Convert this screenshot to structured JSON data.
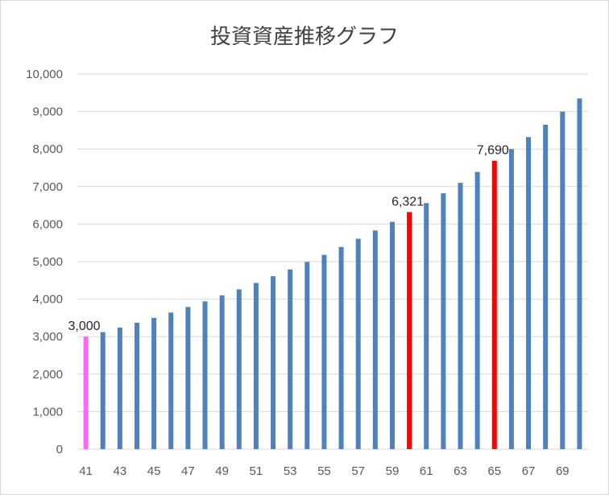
{
  "chart_data": {
    "type": "bar",
    "title": "投資資産推移グラフ",
    "xlabel": "",
    "ylabel": "",
    "ylim": [
      0,
      10000
    ],
    "yticks": [
      "0",
      "1,000",
      "2,000",
      "3,000",
      "4,000",
      "5,000",
      "6,000",
      "7,000",
      "8,000",
      "9,000",
      "10,000"
    ],
    "categories": [
      41,
      42,
      43,
      44,
      45,
      46,
      47,
      48,
      49,
      50,
      51,
      52,
      53,
      54,
      55,
      56,
      57,
      58,
      59,
      60,
      61,
      62,
      63,
      64,
      65,
      66,
      67,
      68,
      69,
      70
    ],
    "xtick_labels": [
      "41",
      "43",
      "45",
      "47",
      "49",
      "51",
      "53",
      "55",
      "57",
      "59",
      "61",
      "63",
      "65",
      "67",
      "69"
    ],
    "values": [
      3000,
      3120,
      3240,
      3370,
      3500,
      3640,
      3790,
      3940,
      4100,
      4260,
      4430,
      4610,
      4790,
      4990,
      5180,
      5390,
      5610,
      5830,
      6060,
      6321,
      6560,
      6820,
      7100,
      7390,
      7690,
      8000,
      8320,
      8650,
      9000,
      9350
    ],
    "colors": {
      "default": "#4f81bd",
      "start": "#ff66ff",
      "highlight": "#ff0000",
      "gridline": "#d9d9d9"
    },
    "highlights": [
      {
        "category": 41,
        "color": "start",
        "label": "3,000"
      },
      {
        "category": 60,
        "color": "highlight",
        "label": "6,321"
      },
      {
        "category": 65,
        "color": "highlight",
        "label": "7,690"
      }
    ],
    "grid": true,
    "legend": "none"
  }
}
